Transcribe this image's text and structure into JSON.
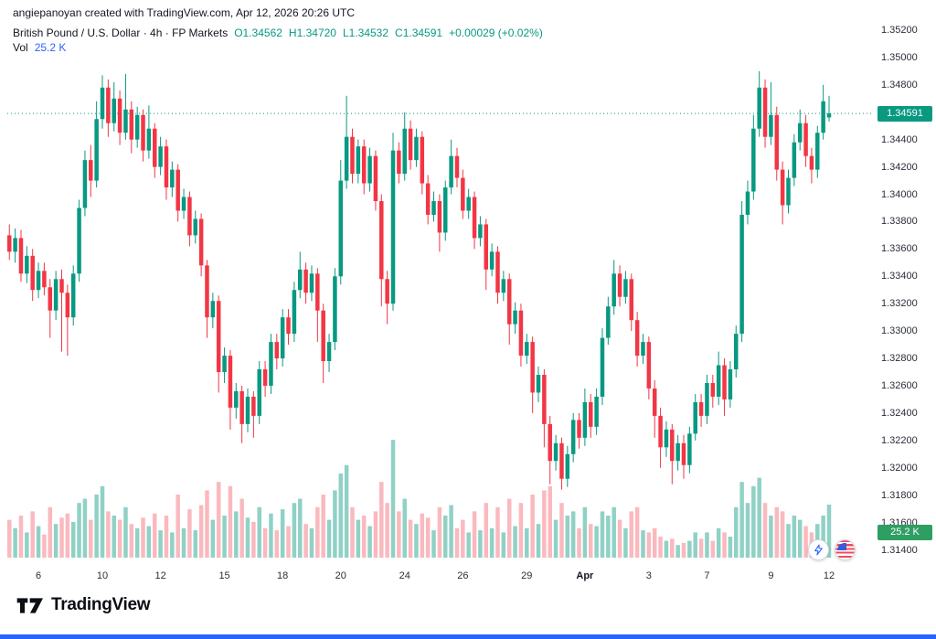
{
  "attribution": "angiepanoyan created with TradingView.com, Apr 12, 2026 20:26 UTC",
  "legend": {
    "symbol_line": "British Pound / U.S. Dollar · 4h · FP Markets",
    "o": "O1.34562",
    "h": "H1.34720",
    "l": "L1.34532",
    "c": "C1.34591",
    "change": "+0.00029 (+0.02%)",
    "vol_label": "Vol",
    "vol_value": "25.2 K"
  },
  "axis": {
    "price_badge": "1.34591",
    "volume_badge": "25.2 K"
  },
  "footer": {
    "brand": "TradingView"
  },
  "colors": {
    "up": "#089981",
    "down": "#f23645",
    "vol_up": "rgba(8,153,129,0.45)",
    "vol_down": "rgba(242,54,69,0.35)",
    "accent_blue": "#2962ff",
    "badge_price": "#089981",
    "badge_volume": "#2f9e63"
  },
  "chart_data": {
    "type": "candlestick",
    "title": "British Pound / U.S. Dollar, 4h, FP Markets",
    "last_price": 1.34591,
    "price_axis": {
      "min": 1.314,
      "max": 1.352,
      "step": 0.002
    },
    "x_ticks": [
      {
        "label": "6",
        "i": 5
      },
      {
        "label": "10",
        "i": 16
      },
      {
        "label": "12",
        "i": 26
      },
      {
        "label": "15",
        "i": 37
      },
      {
        "label": "18",
        "i": 47
      },
      {
        "label": "20",
        "i": 57
      },
      {
        "label": "24",
        "i": 68
      },
      {
        "label": "26",
        "i": 78
      },
      {
        "label": "29",
        "i": 89
      },
      {
        "label": "Apr",
        "i": 99,
        "major": true
      },
      {
        "label": "3",
        "i": 110
      },
      {
        "label": "7",
        "i": 120
      },
      {
        "label": "9",
        "i": 131
      },
      {
        "label": "12",
        "i": 141
      }
    ],
    "candles": [
      [
        1.337,
        1.3378,
        1.3352,
        1.3358,
        18
      ],
      [
        1.3358,
        1.3375,
        1.335,
        1.3368,
        14
      ],
      [
        1.3368,
        1.3374,
        1.3336,
        1.3342,
        20
      ],
      [
        1.3342,
        1.3362,
        1.3335,
        1.3355,
        12
      ],
      [
        1.3355,
        1.336,
        1.3322,
        1.333,
        22
      ],
      [
        1.333,
        1.335,
        1.3324,
        1.3344,
        15
      ],
      [
        1.3344,
        1.335,
        1.3326,
        1.3332,
        11
      ],
      [
        1.3332,
        1.3338,
        1.3295,
        1.3315,
        24
      ],
      [
        1.3315,
        1.3344,
        1.3308,
        1.3338,
        16
      ],
      [
        1.3338,
        1.3345,
        1.3285,
        1.3328,
        19
      ],
      [
        1.3328,
        1.3334,
        1.3282,
        1.331,
        21
      ],
      [
        1.331,
        1.3348,
        1.3304,
        1.3342,
        17
      ],
      [
        1.3342,
        1.3396,
        1.3336,
        1.339,
        26
      ],
      [
        1.339,
        1.3432,
        1.3384,
        1.3425,
        28
      ],
      [
        1.3425,
        1.3436,
        1.3398,
        1.341,
        18
      ],
      [
        1.341,
        1.3468,
        1.3405,
        1.3455,
        30
      ],
      [
        1.3455,
        1.3487,
        1.3448,
        1.3478,
        34
      ],
      [
        1.3478,
        1.3484,
        1.3442,
        1.3452,
        22
      ],
      [
        1.3452,
        1.3482,
        1.3446,
        1.347,
        20
      ],
      [
        1.347,
        1.3476,
        1.3436,
        1.3445,
        18
      ],
      [
        1.3445,
        1.3488,
        1.344,
        1.3462,
        24
      ],
      [
        1.3462,
        1.3468,
        1.343,
        1.344,
        16
      ],
      [
        1.344,
        1.3464,
        1.3434,
        1.3458,
        14
      ],
      [
        1.3458,
        1.3462,
        1.3424,
        1.3432,
        19
      ],
      [
        1.3432,
        1.3465,
        1.3426,
        1.3448,
        15
      ],
      [
        1.3448,
        1.3452,
        1.3412,
        1.342,
        21
      ],
      [
        1.342,
        1.3442,
        1.3414,
        1.3435,
        13
      ],
      [
        1.3435,
        1.344,
        1.3396,
        1.3405,
        20
      ],
      [
        1.3405,
        1.3424,
        1.3398,
        1.3418,
        12
      ],
      [
        1.3418,
        1.3422,
        1.338,
        1.3388,
        30
      ],
      [
        1.3388,
        1.3404,
        1.3382,
        1.3398,
        14
      ],
      [
        1.3398,
        1.3402,
        1.3362,
        1.337,
        23
      ],
      [
        1.337,
        1.3388,
        1.3364,
        1.3382,
        13
      ],
      [
        1.3382,
        1.3386,
        1.334,
        1.3348,
        25
      ],
      [
        1.3348,
        1.3352,
        1.3295,
        1.331,
        32
      ],
      [
        1.331,
        1.3328,
        1.3302,
        1.3322,
        18
      ],
      [
        1.3322,
        1.3326,
        1.3255,
        1.327,
        36
      ],
      [
        1.327,
        1.3288,
        1.3262,
        1.3282,
        20
      ],
      [
        1.3282,
        1.3286,
        1.3228,
        1.3244,
        34
      ],
      [
        1.3244,
        1.3262,
        1.3236,
        1.3256,
        22
      ],
      [
        1.3256,
        1.326,
        1.3218,
        1.3232,
        28
      ],
      [
        1.3232,
        1.3258,
        1.3226,
        1.3252,
        19
      ],
      [
        1.3252,
        1.3256,
        1.3222,
        1.3238,
        17
      ],
      [
        1.3238,
        1.3278,
        1.3232,
        1.3272,
        24
      ],
      [
        1.3272,
        1.3278,
        1.3252,
        1.326,
        14
      ],
      [
        1.326,
        1.3298,
        1.3254,
        1.3292,
        21
      ],
      [
        1.3292,
        1.3298,
        1.3272,
        1.328,
        13
      ],
      [
        1.328,
        1.3316,
        1.3274,
        1.331,
        23
      ],
      [
        1.331,
        1.3316,
        1.329,
        1.3298,
        15
      ],
      [
        1.3298,
        1.3336,
        1.3292,
        1.333,
        26
      ],
      [
        1.333,
        1.3358,
        1.3324,
        1.3345,
        28
      ],
      [
        1.3345,
        1.335,
        1.332,
        1.3328,
        16
      ],
      [
        1.3328,
        1.3348,
        1.3322,
        1.3342,
        14
      ],
      [
        1.3342,
        1.3346,
        1.3292,
        1.3315,
        24
      ],
      [
        1.3315,
        1.332,
        1.3262,
        1.3278,
        30
      ],
      [
        1.3278,
        1.3298,
        1.327,
        1.3292,
        18
      ],
      [
        1.3292,
        1.3346,
        1.3286,
        1.334,
        32
      ],
      [
        1.334,
        1.3425,
        1.3334,
        1.341,
        40
      ],
      [
        1.341,
        1.3472,
        1.3404,
        1.3442,
        44
      ],
      [
        1.3442,
        1.3448,
        1.3408,
        1.3415,
        24
      ],
      [
        1.3415,
        1.344,
        1.3408,
        1.3435,
        18
      ],
      [
        1.3435,
        1.344,
        1.34,
        1.3408,
        20
      ],
      [
        1.3408,
        1.3434,
        1.3402,
        1.3428,
        15
      ],
      [
        1.3428,
        1.3432,
        1.3388,
        1.3395,
        22
      ],
      [
        1.3395,
        1.34,
        1.3318,
        1.3338,
        36
      ],
      [
        1.3338,
        1.3344,
        1.3305,
        1.332,
        26
      ],
      [
        1.332,
        1.3445,
        1.3315,
        1.3432,
        56
      ],
      [
        1.3432,
        1.3438,
        1.3408,
        1.3415,
        22
      ],
      [
        1.3415,
        1.346,
        1.341,
        1.3448,
        28
      ],
      [
        1.3448,
        1.3454,
        1.3418,
        1.3425,
        18
      ],
      [
        1.3425,
        1.3448,
        1.342,
        1.3442,
        16
      ],
      [
        1.3442,
        1.3446,
        1.34,
        1.3408,
        21
      ],
      [
        1.3408,
        1.3414,
        1.3378,
        1.3385,
        19
      ],
      [
        1.3385,
        1.3402,
        1.338,
        1.3395,
        13
      ],
      [
        1.3395,
        1.34,
        1.3358,
        1.3372,
        24
      ],
      [
        1.3372,
        1.341,
        1.3366,
        1.3405,
        20
      ],
      [
        1.3405,
        1.344,
        1.34,
        1.3428,
        25
      ],
      [
        1.3428,
        1.3434,
        1.3405,
        1.3412,
        14
      ],
      [
        1.3412,
        1.3418,
        1.3382,
        1.3388,
        18
      ],
      [
        1.3388,
        1.3404,
        1.3382,
        1.3398,
        12
      ],
      [
        1.3398,
        1.3402,
        1.336,
        1.3368,
        22
      ],
      [
        1.3368,
        1.3384,
        1.3362,
        1.3378,
        13
      ],
      [
        1.3378,
        1.3382,
        1.333,
        1.3345,
        26
      ],
      [
        1.3345,
        1.3364,
        1.334,
        1.3358,
        14
      ],
      [
        1.3358,
        1.3362,
        1.332,
        1.3328,
        24
      ],
      [
        1.3328,
        1.3344,
        1.3322,
        1.3338,
        12
      ],
      [
        1.3338,
        1.3342,
        1.329,
        1.3305,
        28
      ],
      [
        1.3305,
        1.3321,
        1.3298,
        1.3315,
        15
      ],
      [
        1.3315,
        1.332,
        1.3274,
        1.3282,
        26
      ],
      [
        1.3282,
        1.3298,
        1.3276,
        1.3292,
        14
      ],
      [
        1.3292,
        1.3296,
        1.324,
        1.3255,
        30
      ],
      [
        1.3255,
        1.3274,
        1.3248,
        1.3268,
        16
      ],
      [
        1.3268,
        1.3272,
        1.3215,
        1.3232,
        32
      ],
      [
        1.3232,
        1.3238,
        1.3188,
        1.3205,
        34
      ],
      [
        1.3205,
        1.3224,
        1.3198,
        1.3218,
        18
      ],
      [
        1.3218,
        1.3222,
        1.3184,
        1.3192,
        26
      ],
      [
        1.3192,
        1.3216,
        1.3186,
        1.321,
        20
      ],
      [
        1.321,
        1.324,
        1.3204,
        1.3235,
        22
      ],
      [
        1.3235,
        1.324,
        1.3214,
        1.3222,
        14
      ],
      [
        1.3222,
        1.3258,
        1.3216,
        1.3248,
        24
      ],
      [
        1.3248,
        1.3254,
        1.3222,
        1.323,
        16
      ],
      [
        1.323,
        1.3258,
        1.3224,
        1.3252,
        15
      ],
      [
        1.3252,
        1.3302,
        1.3246,
        1.3295,
        22
      ],
      [
        1.3295,
        1.3325,
        1.329,
        1.3318,
        20
      ],
      [
        1.3318,
        1.3352,
        1.3312,
        1.3342,
        24
      ],
      [
        1.3342,
        1.3348,
        1.3318,
        1.3325,
        18
      ],
      [
        1.3325,
        1.3344,
        1.332,
        1.3338,
        14
      ],
      [
        1.3338,
        1.3342,
        1.33,
        1.3308,
        22
      ],
      [
        1.3308,
        1.3314,
        1.3274,
        1.3282,
        24
      ],
      [
        1.3282,
        1.3298,
        1.3276,
        1.3292,
        13
      ],
      [
        1.3292,
        1.3296,
        1.325,
        1.3258,
        12
      ],
      [
        1.3258,
        1.3264,
        1.3222,
        1.3238,
        14
      ],
      [
        1.3238,
        1.3244,
        1.32,
        1.3215,
        10
      ],
      [
        1.3215,
        1.3234,
        1.3208,
        1.3228,
        8
      ],
      [
        1.3228,
        1.3232,
        1.3188,
        1.3205,
        9
      ],
      [
        1.3205,
        1.3224,
        1.3198,
        1.3218,
        6
      ],
      [
        1.3218,
        1.3224,
        1.3192,
        1.3202,
        7
      ],
      [
        1.3202,
        1.323,
        1.3196,
        1.3225,
        8
      ],
      [
        1.3225,
        1.3254,
        1.322,
        1.3248,
        12
      ],
      [
        1.3248,
        1.3254,
        1.323,
        1.3238,
        9
      ],
      [
        1.3238,
        1.3268,
        1.3232,
        1.3262,
        12
      ],
      [
        1.3262,
        1.3268,
        1.3244,
        1.3252,
        8
      ],
      [
        1.3252,
        1.3285,
        1.3246,
        1.3275,
        14
      ],
      [
        1.3275,
        1.328,
        1.3238,
        1.325,
        12
      ],
      [
        1.325,
        1.3278,
        1.3244,
        1.3272,
        10
      ],
      [
        1.3272,
        1.3304,
        1.3266,
        1.3298,
        24
      ],
      [
        1.3298,
        1.3395,
        1.3292,
        1.3385,
        36
      ],
      [
        1.3385,
        1.341,
        1.3378,
        1.3402,
        26
      ],
      [
        1.3402,
        1.3458,
        1.3396,
        1.3448,
        34
      ],
      [
        1.3448,
        1.349,
        1.3442,
        1.3478,
        38
      ],
      [
        1.3478,
        1.3484,
        1.3434,
        1.3442,
        26
      ],
      [
        1.3442,
        1.3482,
        1.3436,
        1.3458,
        20
      ],
      [
        1.3458,
        1.3464,
        1.341,
        1.3418,
        24
      ],
      [
        1.3418,
        1.3424,
        1.3378,
        1.3392,
        22
      ],
      [
        1.3392,
        1.3418,
        1.3386,
        1.3412,
        16
      ],
      [
        1.3412,
        1.3444,
        1.3406,
        1.3438,
        20
      ],
      [
        1.3438,
        1.3462,
        1.3432,
        1.3452,
        18
      ],
      [
        1.3452,
        1.3458,
        1.342,
        1.3428,
        15
      ],
      [
        1.3428,
        1.3434,
        1.3408,
        1.3418,
        12
      ],
      [
        1.3418,
        1.345,
        1.3412,
        1.3445,
        16
      ],
      [
        1.3445,
        1.348,
        1.344,
        1.3468,
        20
      ],
      [
        1.34562,
        1.3472,
        1.34532,
        1.34591,
        25.2
      ]
    ]
  }
}
